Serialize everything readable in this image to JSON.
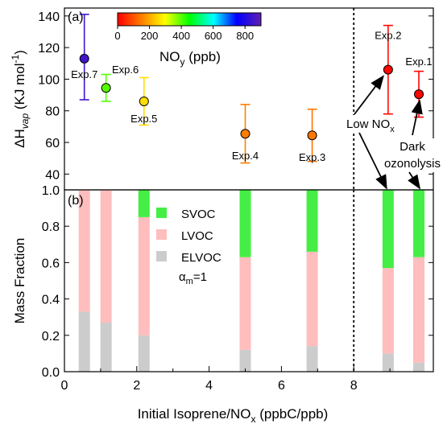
{
  "chart_data": [
    {
      "type": "scatter",
      "panel_label": "(a)",
      "ylabel": "ΔH",
      "ylabel_sub": "vap",
      "ylabel_unit": " (KJ mol",
      "ylabel_sup": "-1",
      "ylabel_close": ")",
      "ylim": [
        30,
        145
      ],
      "xlim": [
        0,
        10.2
      ],
      "yticks": [
        40,
        60,
        80,
        100,
        120,
        140
      ],
      "colorbar": {
        "label": "NO",
        "label_sub": "y",
        "label_unit": " (ppb)",
        "ticks": [
          0,
          200,
          400,
          600,
          800
        ],
        "range": [
          0,
          900
        ]
      },
      "points": [
        {
          "label": "Exp.7",
          "x": 0.55,
          "y": 113,
          "low": 87,
          "high": 141,
          "nox": 850
        },
        {
          "label": "Exp.6",
          "x": 1.15,
          "y": 94.5,
          "low": 86,
          "high": 103,
          "nox": 400
        },
        {
          "label": "Exp.5",
          "x": 2.2,
          "y": 86,
          "low": 71,
          "high": 101,
          "nox": 260
        },
        {
          "label": "Exp.4",
          "x": 5.0,
          "y": 65.5,
          "low": 47,
          "high": 84,
          "nox": 150
        },
        {
          "label": "Exp.3",
          "x": 6.85,
          "y": 64.5,
          "low": 48,
          "high": 81,
          "nox": 140
        },
        {
          "label": "Exp.2",
          "x": 8.95,
          "y": 106,
          "low": 78,
          "high": 134,
          "nox": 10
        },
        {
          "label": "Exp.1",
          "x": 9.8,
          "y": 90.5,
          "low": 76,
          "high": 105,
          "nox": 5
        }
      ],
      "annotations": {
        "low_nox": "Low NO",
        "low_nox_sub": "x",
        "dark_line1": "Dark",
        "dark_line2": "ozonolysis"
      },
      "divider_x": 8
    },
    {
      "type": "stacked-bar",
      "panel_label": "(b)",
      "ylabel": "Mass Fraction",
      "xlabel": "Initial Isoprene/NO",
      "xlabel_sub": "x",
      "xlabel_unit": " (ppbC/ppb)",
      "xlim": [
        0,
        10.2
      ],
      "ylim": [
        0,
        1.0
      ],
      "xticks": [
        0,
        2,
        4,
        6,
        8
      ],
      "yticks": [
        "0.0",
        "0.2",
        "0.4",
        "0.6",
        "0.8",
        "1.0"
      ],
      "alpha_label": "α",
      "alpha_sub": "m",
      "alpha_value": "=1",
      "series": [
        {
          "name": "SVOC",
          "color": "#44ee44",
          "values": [
            0.0,
            0.0,
            0.15,
            0.37,
            0.34,
            0.43,
            0.37
          ]
        },
        {
          "name": "LVOC",
          "color": "#ffbdbd",
          "values": [
            0.67,
            0.73,
            0.65,
            0.51,
            0.52,
            0.47,
            0.58
          ]
        },
        {
          "name": "ELVOC",
          "color": "#cccccc",
          "values": [
            0.33,
            0.27,
            0.2,
            0.12,
            0.14,
            0.1,
            0.05
          ]
        }
      ],
      "x": [
        0.55,
        1.15,
        2.2,
        5.0,
        6.85,
        8.95,
        9.8
      ],
      "divider_x": 8
    }
  ]
}
